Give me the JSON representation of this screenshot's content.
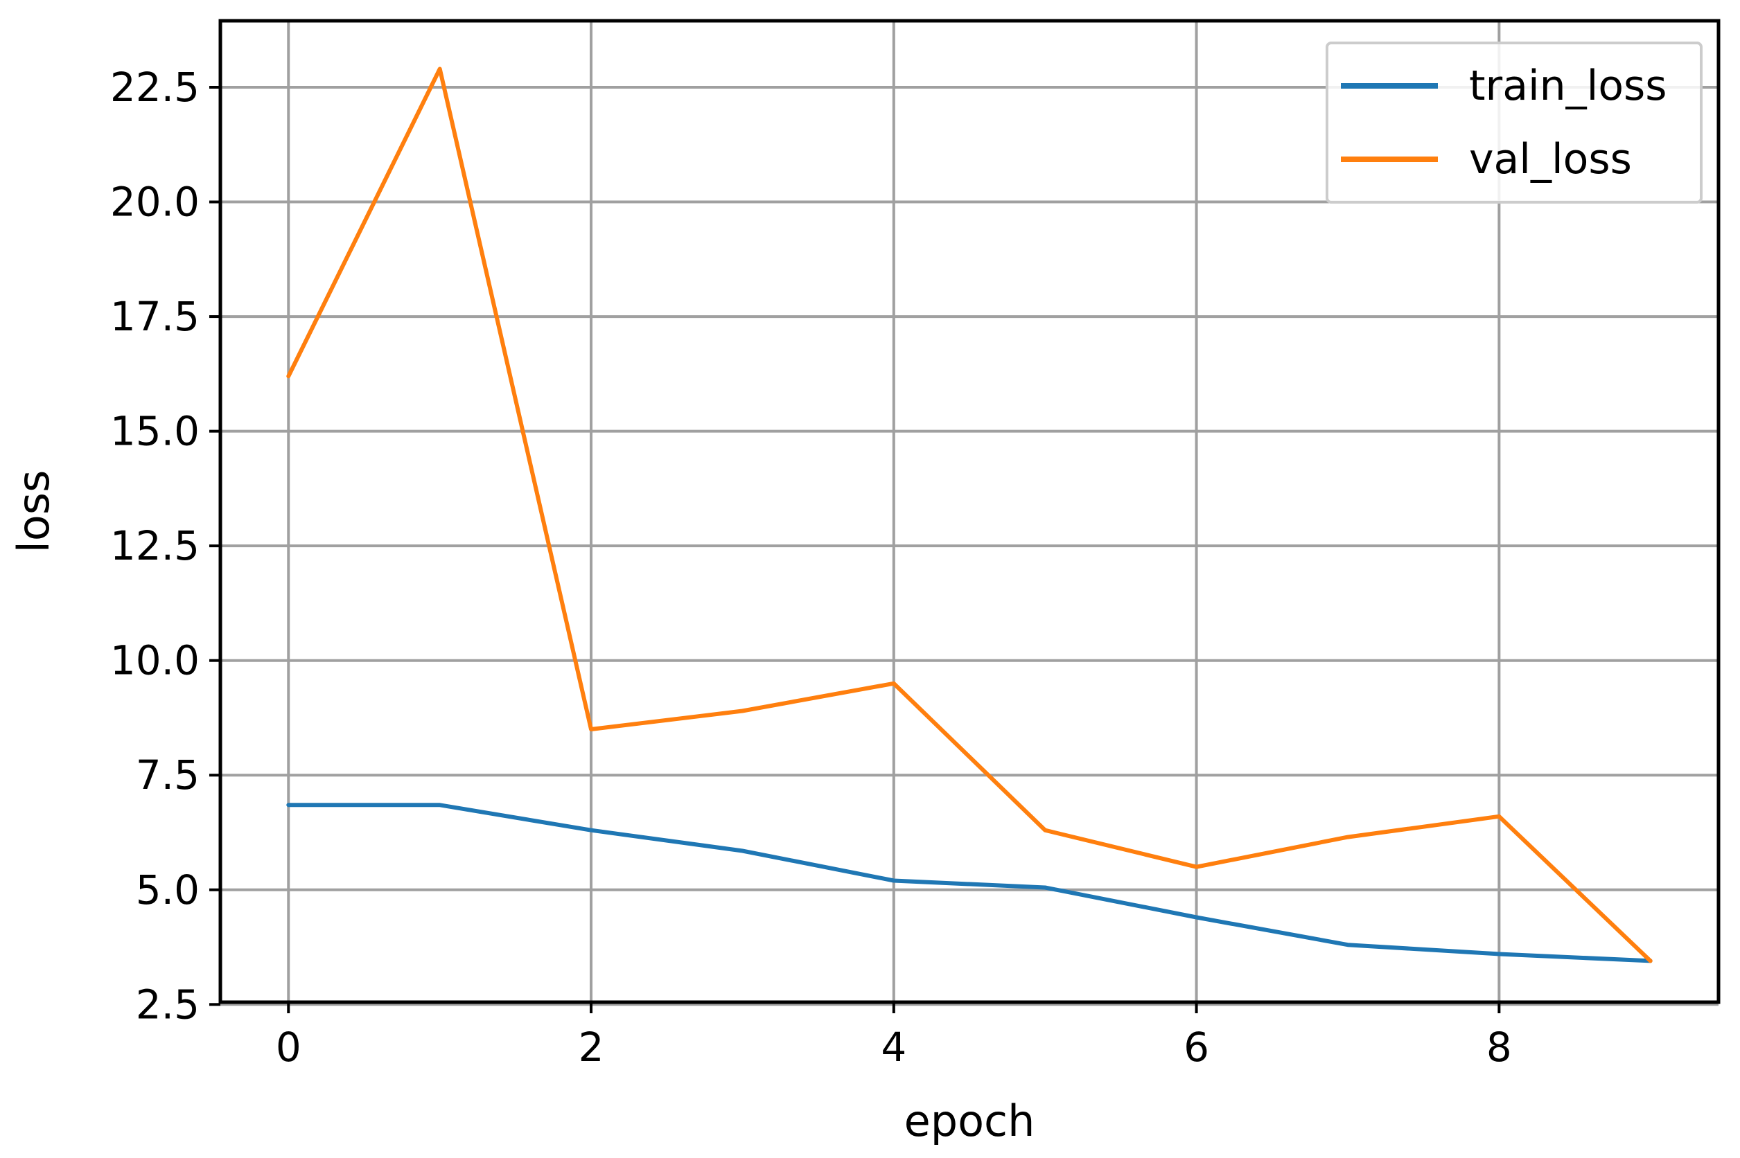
{
  "chart_data": {
    "type": "line",
    "title": "",
    "xlabel": "epoch",
    "ylabel": "loss",
    "x": [
      0,
      1,
      2,
      3,
      4,
      5,
      6,
      7,
      8,
      9
    ],
    "xlim": [
      -0.45,
      9.45
    ],
    "ylim": [
      2.55,
      23.95
    ],
    "xticks": [
      0,
      2,
      4,
      6,
      8
    ],
    "yticks": [
      2.5,
      5.0,
      7.5,
      10.0,
      12.5,
      15.0,
      17.5,
      20.0,
      22.5
    ],
    "xtick_labels": [
      "0",
      "2",
      "4",
      "6",
      "8"
    ],
    "ytick_labels": [
      "2.5",
      "5.0",
      "7.5",
      "10.0",
      "12.5",
      "15.0",
      "17.5",
      "20.0",
      "22.5"
    ],
    "grid": true,
    "legend_position": "top-right",
    "series": [
      {
        "name": "train_loss",
        "color": "#1f77b4",
        "values": [
          6.85,
          6.85,
          6.3,
          5.85,
          5.2,
          5.05,
          4.4,
          3.8,
          3.6,
          3.45
        ]
      },
      {
        "name": "val_loss",
        "color": "#ff7f0e",
        "values": [
          16.2,
          22.9,
          8.5,
          8.9,
          9.5,
          6.3,
          5.5,
          6.15,
          6.6,
          3.45
        ]
      }
    ]
  }
}
